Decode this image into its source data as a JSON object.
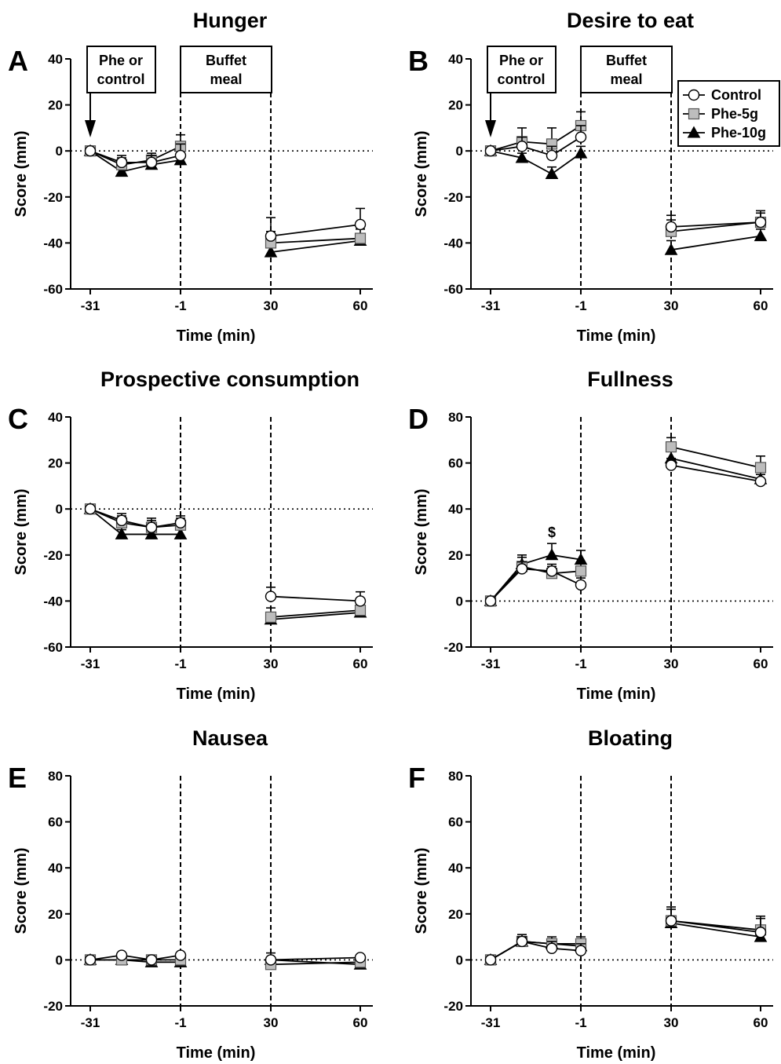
{
  "chart_data": [
    {
      "type": "line",
      "panel": "A",
      "title": "Hunger",
      "xlabel": "Time (min)",
      "ylabel": "Score (mm)",
      "x": [
        -31,
        -20,
        -10,
        -1,
        30,
        60
      ],
      "x_ticks": [
        "-31",
        "-1",
        "30",
        "60"
      ],
      "ylim": [
        -60,
        40
      ],
      "y_ticks": [
        40,
        20,
        0,
        -20,
        -40,
        -60
      ],
      "vlines_at": [
        -1,
        30
      ],
      "boxes": [
        "Phe or control",
        "Buffet meal"
      ],
      "series": [
        {
          "name": "Control",
          "values": [
            0,
            -5,
            -5,
            -2,
            -37,
            -32
          ],
          "errors": [
            0,
            3,
            3,
            5,
            8,
            7
          ]
        },
        {
          "name": "Phe-5g",
          "values": [
            0,
            -6,
            -4,
            2,
            -40,
            -38
          ],
          "errors": [
            0,
            3,
            3,
            5,
            5,
            4
          ]
        },
        {
          "name": "Phe-10g",
          "values": [
            0,
            -9,
            -6,
            -4,
            -44,
            -39
          ],
          "errors": [
            0,
            2,
            2,
            3,
            3,
            2
          ]
        }
      ]
    },
    {
      "type": "line",
      "panel": "B",
      "title": "Desire to eat",
      "xlabel": "Time (min)",
      "ylabel": "Score (mm)",
      "x": [
        -31,
        -20,
        -10,
        -1,
        30,
        60
      ],
      "x_ticks": [
        "-31",
        "-1",
        "30",
        "60"
      ],
      "ylim": [
        -60,
        40
      ],
      "y_ticks": [
        40,
        20,
        0,
        -20,
        -40,
        -60
      ],
      "vlines_at": [
        -1,
        30
      ],
      "boxes": [
        "Phe or control",
        "Buffet meal"
      ],
      "legend": {
        "position": "top-right",
        "entries": [
          "Control",
          "Phe-5g",
          "Phe-10g"
        ]
      },
      "series": [
        {
          "name": "Control",
          "values": [
            0,
            2,
            -2,
            6,
            -33,
            -31
          ],
          "errors": [
            0,
            4,
            4,
            5,
            5,
            5
          ]
        },
        {
          "name": "Phe-5g",
          "values": [
            0,
            4,
            3,
            11,
            -35,
            -31
          ],
          "errors": [
            0,
            6,
            7,
            6,
            5,
            4
          ]
        },
        {
          "name": "Phe-10g",
          "values": [
            0,
            -3,
            -10,
            -1,
            -43,
            -37
          ],
          "errors": [
            0,
            2,
            3,
            3,
            4,
            3
          ]
        }
      ]
    },
    {
      "type": "line",
      "panel": "C",
      "title": "Prospective consumption",
      "xlabel": "Time (min)",
      "ylabel": "Score (mm)",
      "x": [
        -31,
        -20,
        -10,
        -1,
        30,
        60
      ],
      "x_ticks": [
        "-31",
        "-1",
        "30",
        "60"
      ],
      "ylim": [
        -60,
        40
      ],
      "y_ticks": [
        40,
        20,
        0,
        -20,
        -40,
        -60
      ],
      "vlines_at": [
        -1,
        30
      ],
      "series": [
        {
          "name": "Control",
          "values": [
            0,
            -5,
            -8,
            -6,
            -38,
            -40
          ],
          "errors": [
            0,
            3,
            3,
            3,
            4,
            4
          ]
        },
        {
          "name": "Phe-5g",
          "values": [
            0,
            -6,
            -8,
            -7,
            -47,
            -44
          ],
          "errors": [
            0,
            3,
            4,
            3,
            4,
            3
          ]
        },
        {
          "name": "Phe-10g",
          "values": [
            0,
            -11,
            -11,
            -11,
            -48,
            -45
          ],
          "errors": [
            0,
            2,
            2,
            2,
            3,
            2
          ]
        }
      ]
    },
    {
      "type": "line",
      "panel": "D",
      "title": "Fullness",
      "xlabel": "Time (min)",
      "ylabel": "Score (mm)",
      "x": [
        -31,
        -20,
        -10,
        -1,
        30,
        60
      ],
      "x_ticks": [
        "-31",
        "-1",
        "30",
        "60"
      ],
      "ylim": [
        -20,
        80
      ],
      "y_ticks": [
        80,
        60,
        40,
        20,
        0,
        -20
      ],
      "vlines_at": [
        -1,
        30
      ],
      "annotations": [
        {
          "text": "$",
          "x": -10
        }
      ],
      "series": [
        {
          "name": "Control",
          "values": [
            0,
            14,
            13,
            7,
            59,
            52
          ],
          "errors": [
            0,
            3,
            3,
            3,
            3,
            3
          ]
        },
        {
          "name": "Phe-5g",
          "values": [
            0,
            15,
            12,
            13,
            67,
            58
          ],
          "errors": [
            0,
            4,
            3,
            4,
            4,
            5
          ]
        },
        {
          "name": "Phe-10g",
          "values": [
            0,
            16,
            20,
            18,
            62,
            53
          ],
          "errors": [
            0,
            4,
            5,
            4,
            4,
            3
          ]
        }
      ]
    },
    {
      "type": "line",
      "panel": "E",
      "title": "Nausea",
      "xlabel": "Time (min)",
      "ylabel": "Score (mm)",
      "x": [
        -31,
        -20,
        -10,
        -1,
        30,
        60
      ],
      "x_ticks": [
        "-31",
        "-1",
        "30",
        "60"
      ],
      "ylim": [
        -20,
        80
      ],
      "y_ticks": [
        80,
        60,
        40,
        20,
        0,
        -20
      ],
      "vlines_at": [
        -1,
        30
      ],
      "series": [
        {
          "name": "Control",
          "values": [
            0,
            2,
            0,
            2,
            0,
            1
          ],
          "errors": [
            0,
            1,
            1,
            1,
            3,
            1
          ]
        },
        {
          "name": "Phe-5g",
          "values": [
            0,
            0,
            0,
            0,
            -2,
            -1
          ],
          "errors": [
            0,
            1,
            1,
            1,
            3,
            1
          ]
        },
        {
          "name": "Phe-10g",
          "values": [
            0,
            0,
            -1,
            -1,
            0,
            -2
          ],
          "errors": [
            0,
            1,
            1,
            1,
            1,
            1
          ]
        }
      ]
    },
    {
      "type": "line",
      "panel": "F",
      "title": "Bloating",
      "xlabel": "Time (min)",
      "ylabel": "Score (mm)",
      "x": [
        -31,
        -20,
        -10,
        -1,
        30,
        60
      ],
      "x_ticks": [
        "-31",
        "-1",
        "30",
        "60"
      ],
      "ylim": [
        -20,
        80
      ],
      "y_ticks": [
        80,
        60,
        40,
        20,
        0,
        -20
      ],
      "vlines_at": [
        -1,
        30
      ],
      "series": [
        {
          "name": "Control",
          "values": [
            0,
            8,
            5,
            4,
            17,
            12
          ],
          "errors": [
            0,
            2,
            3,
            3,
            5,
            6
          ]
        },
        {
          "name": "Phe-5g",
          "values": [
            0,
            8,
            7,
            7,
            17,
            13
          ],
          "errors": [
            0,
            3,
            3,
            3,
            6,
            6
          ]
        },
        {
          "name": "Phe-10g",
          "values": [
            0,
            8,
            7,
            6,
            16,
            10
          ],
          "errors": [
            0,
            2,
            2,
            2,
            3,
            3
          ]
        }
      ]
    }
  ]
}
